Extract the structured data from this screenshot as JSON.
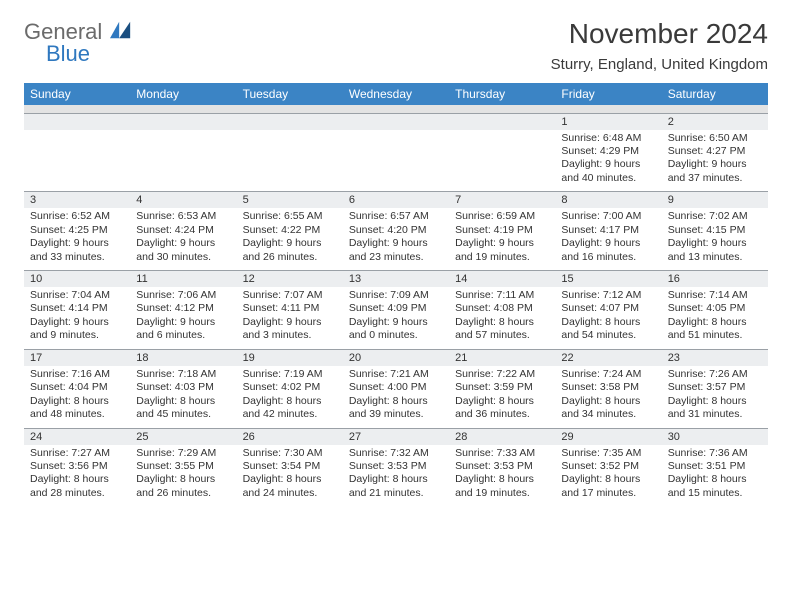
{
  "brand": {
    "word1": "General",
    "word2": "Blue"
  },
  "title": "November 2024",
  "location": "Sturry, England, United Kingdom",
  "colors": {
    "header_bg": "#3b84c5",
    "header_fg": "#ffffff",
    "daynum_bg": "#eceef0",
    "daynum_border": "#9aa0a6",
    "sep_bg": "#e3e3e3",
    "text": "#333333",
    "logo_gray": "#6b6b6b",
    "logo_blue": "#2f78bf"
  },
  "weekdays": [
    "Sunday",
    "Monday",
    "Tuesday",
    "Wednesday",
    "Thursday",
    "Friday",
    "Saturday"
  ],
  "weeks": [
    [
      null,
      null,
      null,
      null,
      null,
      {
        "n": "1",
        "sr": "Sunrise: 6:48 AM",
        "ss": "Sunset: 4:29 PM",
        "d1": "Daylight: 9 hours",
        "d2": "and 40 minutes."
      },
      {
        "n": "2",
        "sr": "Sunrise: 6:50 AM",
        "ss": "Sunset: 4:27 PM",
        "d1": "Daylight: 9 hours",
        "d2": "and 37 minutes."
      }
    ],
    [
      {
        "n": "3",
        "sr": "Sunrise: 6:52 AM",
        "ss": "Sunset: 4:25 PM",
        "d1": "Daylight: 9 hours",
        "d2": "and 33 minutes."
      },
      {
        "n": "4",
        "sr": "Sunrise: 6:53 AM",
        "ss": "Sunset: 4:24 PM",
        "d1": "Daylight: 9 hours",
        "d2": "and 30 minutes."
      },
      {
        "n": "5",
        "sr": "Sunrise: 6:55 AM",
        "ss": "Sunset: 4:22 PM",
        "d1": "Daylight: 9 hours",
        "d2": "and 26 minutes."
      },
      {
        "n": "6",
        "sr": "Sunrise: 6:57 AM",
        "ss": "Sunset: 4:20 PM",
        "d1": "Daylight: 9 hours",
        "d2": "and 23 minutes."
      },
      {
        "n": "7",
        "sr": "Sunrise: 6:59 AM",
        "ss": "Sunset: 4:19 PM",
        "d1": "Daylight: 9 hours",
        "d2": "and 19 minutes."
      },
      {
        "n": "8",
        "sr": "Sunrise: 7:00 AM",
        "ss": "Sunset: 4:17 PM",
        "d1": "Daylight: 9 hours",
        "d2": "and 16 minutes."
      },
      {
        "n": "9",
        "sr": "Sunrise: 7:02 AM",
        "ss": "Sunset: 4:15 PM",
        "d1": "Daylight: 9 hours",
        "d2": "and 13 minutes."
      }
    ],
    [
      {
        "n": "10",
        "sr": "Sunrise: 7:04 AM",
        "ss": "Sunset: 4:14 PM",
        "d1": "Daylight: 9 hours",
        "d2": "and 9 minutes."
      },
      {
        "n": "11",
        "sr": "Sunrise: 7:06 AM",
        "ss": "Sunset: 4:12 PM",
        "d1": "Daylight: 9 hours",
        "d2": "and 6 minutes."
      },
      {
        "n": "12",
        "sr": "Sunrise: 7:07 AM",
        "ss": "Sunset: 4:11 PM",
        "d1": "Daylight: 9 hours",
        "d2": "and 3 minutes."
      },
      {
        "n": "13",
        "sr": "Sunrise: 7:09 AM",
        "ss": "Sunset: 4:09 PM",
        "d1": "Daylight: 9 hours",
        "d2": "and 0 minutes."
      },
      {
        "n": "14",
        "sr": "Sunrise: 7:11 AM",
        "ss": "Sunset: 4:08 PM",
        "d1": "Daylight: 8 hours",
        "d2": "and 57 minutes."
      },
      {
        "n": "15",
        "sr": "Sunrise: 7:12 AM",
        "ss": "Sunset: 4:07 PM",
        "d1": "Daylight: 8 hours",
        "d2": "and 54 minutes."
      },
      {
        "n": "16",
        "sr": "Sunrise: 7:14 AM",
        "ss": "Sunset: 4:05 PM",
        "d1": "Daylight: 8 hours",
        "d2": "and 51 minutes."
      }
    ],
    [
      {
        "n": "17",
        "sr": "Sunrise: 7:16 AM",
        "ss": "Sunset: 4:04 PM",
        "d1": "Daylight: 8 hours",
        "d2": "and 48 minutes."
      },
      {
        "n": "18",
        "sr": "Sunrise: 7:18 AM",
        "ss": "Sunset: 4:03 PM",
        "d1": "Daylight: 8 hours",
        "d2": "and 45 minutes."
      },
      {
        "n": "19",
        "sr": "Sunrise: 7:19 AM",
        "ss": "Sunset: 4:02 PM",
        "d1": "Daylight: 8 hours",
        "d2": "and 42 minutes."
      },
      {
        "n": "20",
        "sr": "Sunrise: 7:21 AM",
        "ss": "Sunset: 4:00 PM",
        "d1": "Daylight: 8 hours",
        "d2": "and 39 minutes."
      },
      {
        "n": "21",
        "sr": "Sunrise: 7:22 AM",
        "ss": "Sunset: 3:59 PM",
        "d1": "Daylight: 8 hours",
        "d2": "and 36 minutes."
      },
      {
        "n": "22",
        "sr": "Sunrise: 7:24 AM",
        "ss": "Sunset: 3:58 PM",
        "d1": "Daylight: 8 hours",
        "d2": "and 34 minutes."
      },
      {
        "n": "23",
        "sr": "Sunrise: 7:26 AM",
        "ss": "Sunset: 3:57 PM",
        "d1": "Daylight: 8 hours",
        "d2": "and 31 minutes."
      }
    ],
    [
      {
        "n": "24",
        "sr": "Sunrise: 7:27 AM",
        "ss": "Sunset: 3:56 PM",
        "d1": "Daylight: 8 hours",
        "d2": "and 28 minutes."
      },
      {
        "n": "25",
        "sr": "Sunrise: 7:29 AM",
        "ss": "Sunset: 3:55 PM",
        "d1": "Daylight: 8 hours",
        "d2": "and 26 minutes."
      },
      {
        "n": "26",
        "sr": "Sunrise: 7:30 AM",
        "ss": "Sunset: 3:54 PM",
        "d1": "Daylight: 8 hours",
        "d2": "and 24 minutes."
      },
      {
        "n": "27",
        "sr": "Sunrise: 7:32 AM",
        "ss": "Sunset: 3:53 PM",
        "d1": "Daylight: 8 hours",
        "d2": "and 21 minutes."
      },
      {
        "n": "28",
        "sr": "Sunrise: 7:33 AM",
        "ss": "Sunset: 3:53 PM",
        "d1": "Daylight: 8 hours",
        "d2": "and 19 minutes."
      },
      {
        "n": "29",
        "sr": "Sunrise: 7:35 AM",
        "ss": "Sunset: 3:52 PM",
        "d1": "Daylight: 8 hours",
        "d2": "and 17 minutes."
      },
      {
        "n": "30",
        "sr": "Sunrise: 7:36 AM",
        "ss": "Sunset: 3:51 PM",
        "d1": "Daylight: 8 hours",
        "d2": "and 15 minutes."
      }
    ]
  ]
}
